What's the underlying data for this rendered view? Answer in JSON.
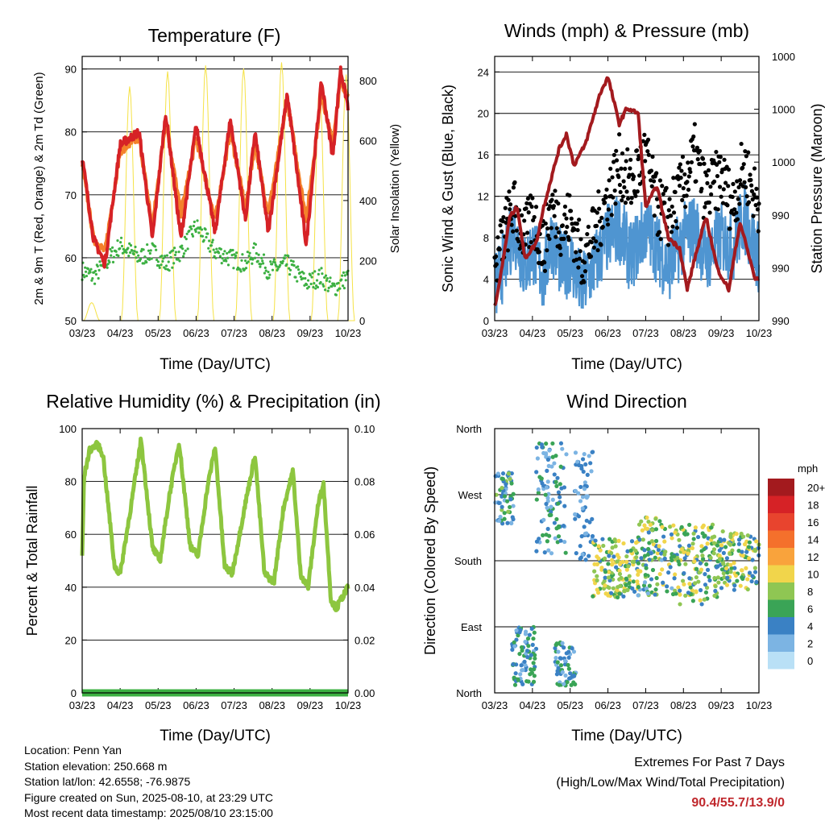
{
  "info": {
    "location": "Location: Penn Yan",
    "elevation": "Station elevation: 250.668 m",
    "latlon": "Station lat/lon: 42.6558; -76.9875",
    "created": "Figure created on Sun, 2025-08-10, at 23:29 UTC",
    "recent": "Most recent data timestamp: 2025/08/10 23:15:00"
  },
  "extremes": {
    "title": "Extremes For Past 7 Days",
    "subtitle": "(High/Low/Max Wind/Total Precipitation)",
    "values": "90.4/55.7/13.9/0"
  },
  "colors": {
    "temp2m": "#d62226",
    "temp9m": "#f4812a",
    "dewpoint": "#3cb042",
    "solar": "#f5e246",
    "wind": "#4f95d1",
    "gust": "#000000",
    "pressure": "#a31a1e",
    "humidity": "#8dc63f",
    "precip": "#3cb042"
  },
  "chart_data": [
    {
      "type": "line",
      "title": "Temperature (F)",
      "xlabel": "Time (Day/UTC)",
      "ylabel": "2m & 9m T (Red, Orange) & 2m Td (Green)",
      "y2label": "Solar Insolation (Yellow)",
      "xticks": [
        "03/23",
        "04/23",
        "05/23",
        "06/23",
        "07/23",
        "08/23",
        "09/23",
        "10/23"
      ],
      "ylim": [
        50,
        92
      ],
      "yticks": [
        "50",
        "60",
        "70",
        "80",
        "90"
      ],
      "y2lim": [
        0,
        880
      ],
      "y2ticks": [
        "0",
        "200",
        "400",
        "600",
        "800"
      ],
      "series": [
        {
          "name": "2m T",
          "color": "#d62226",
          "x": [
            0,
            0.3,
            0.6,
            1.0,
            1.5,
            1.85,
            2.2,
            2.6,
            3.0,
            3.5,
            3.9,
            4.3,
            4.55,
            4.9,
            5.4,
            5.9,
            6.3,
            6.6,
            6.8,
            7.0
          ],
          "y": [
            76,
            63,
            59,
            78,
            80,
            63,
            83,
            63,
            81,
            64,
            82,
            66,
            80,
            64,
            86,
            62,
            88,
            76,
            90,
            84
          ]
        },
        {
          "name": "9m T",
          "color": "#f4812a",
          "x": [
            0,
            0.3,
            0.6,
            1.0,
            1.5,
            1.85,
            2.2,
            2.6,
            3.0,
            3.5,
            3.9,
            4.3,
            4.55,
            4.9,
            5.4,
            5.9,
            6.3,
            6.6,
            6.8,
            7.0
          ],
          "y": [
            75,
            63,
            61,
            77,
            79,
            65,
            82,
            67,
            79,
            66,
            80,
            68,
            78,
            67,
            85,
            66,
            86,
            78,
            88,
            86
          ]
        },
        {
          "name": "2m Td",
          "color": "#3cb042",
          "x": [
            0,
            0.3,
            0.6,
            1.0,
            1.5,
            1.85,
            2.2,
            2.6,
            3.0,
            3.5,
            3.9,
            4.3,
            4.55,
            4.9,
            5.4,
            5.9,
            6.3,
            6.6,
            6.8,
            7.0
          ],
          "y": [
            58,
            57,
            59,
            62,
            60,
            61,
            59,
            61,
            65,
            61,
            60,
            59,
            61,
            58,
            59,
            56,
            57,
            55,
            56,
            57
          ]
        },
        {
          "name": "Solar",
          "color": "#f5e246",
          "axis": "y2",
          "peaks_x": [
            0.25,
            1.25,
            2.25,
            3.25,
            4.25,
            5.25,
            6.25,
            6.95
          ],
          "peaks_y": [
            60,
            780,
            830,
            850,
            840,
            860,
            780,
            820
          ]
        }
      ]
    },
    {
      "type": "line",
      "title": "Winds (mph) & Pressure (mb)",
      "xlabel": "Time (Day/UTC)",
      "ylabel": "Sonic Wind & Gust (Blue, Black)",
      "y2label": "Station Pressure (Maroon)",
      "xticks": [
        "03/23",
        "04/23",
        "05/23",
        "06/23",
        "07/23",
        "08/23",
        "09/23",
        "10/23"
      ],
      "ylim": [
        0,
        25.5
      ],
      "yticks": [
        "0",
        "4",
        "8",
        "12",
        "16",
        "20",
        "24"
      ],
      "y2ticks": [
        "990",
        "990",
        "990",
        "1000",
        "1000",
        "1000"
      ],
      "series": [
        {
          "name": "Wind",
          "color": "#4f95d1",
          "x": [
            0,
            0.3,
            0.5,
            0.8,
            1.0,
            1.3,
            1.5,
            1.8,
            2.0,
            2.3,
            2.6,
            3.0,
            3.3,
            3.6,
            4.0,
            4.3,
            4.6,
            5.0,
            5.3,
            5.6,
            6.0,
            6.3,
            6.6,
            7.0
          ],
          "y": [
            3,
            6,
            9,
            5,
            7,
            4,
            8,
            5,
            6,
            3,
            5,
            8,
            9,
            6,
            9,
            7,
            5,
            8,
            9,
            6,
            8,
            7,
            10,
            6
          ]
        },
        {
          "name": "Gust",
          "color": "#000000",
          "x": [
            0,
            0.3,
            0.5,
            0.8,
            1.0,
            1.3,
            1.5,
            1.8,
            2.0,
            2.3,
            2.6,
            3.0,
            3.3,
            3.6,
            4.0,
            4.3,
            4.6,
            5.0,
            5.3,
            5.6,
            6.0,
            6.3,
            6.6,
            7.0
          ],
          "y": [
            5,
            9,
            11,
            8,
            10,
            7,
            11,
            9,
            10,
            6,
            8,
            12,
            15,
            13,
            16,
            11,
            10,
            13,
            16,
            12,
            14,
            11,
            15,
            11
          ]
        },
        {
          "name": "Pressure",
          "color": "#a31a1e",
          "x": [
            0,
            0.1,
            0.4,
            0.6,
            0.8,
            1.1,
            1.3,
            1.7,
            1.9,
            2.1,
            2.4,
            2.8,
            3.0,
            3.3,
            3.5,
            3.8,
            4.0,
            4.3,
            4.6,
            4.9,
            5.1,
            5.3,
            5.6,
            5.9,
            6.2,
            6.5,
            6.9,
            7.0
          ],
          "y": [
            1.5,
            3,
            10,
            11,
            6,
            7.5,
            11,
            16.5,
            18,
            15,
            17,
            22,
            23.5,
            19,
            20.5,
            20,
            11,
            13,
            8,
            7,
            3,
            6,
            10,
            5,
            3,
            9.5,
            4,
            4
          ]
        }
      ]
    },
    {
      "type": "line",
      "title": "Relative Humidity (%) & Precipitation (in)",
      "xlabel": "Time (Day/UTC)",
      "ylabel": "Percent & Total Rainfall",
      "xticks": [
        "03/23",
        "04/23",
        "05/23",
        "06/23",
        "07/23",
        "08/23",
        "09/23",
        "10/23"
      ],
      "ylim": [
        0,
        100
      ],
      "yticks": [
        "0",
        "20",
        "40",
        "60",
        "80",
        "100"
      ],
      "y2lim": [
        0,
        0.1
      ],
      "y2ticks": [
        "0.00",
        "0.02",
        "0.04",
        "0.06",
        "0.08",
        "0.10"
      ],
      "series": [
        {
          "name": "RH",
          "color": "#8dc63f",
          "x": [
            0,
            0.05,
            0.2,
            0.4,
            0.55,
            0.85,
            1.0,
            1.3,
            1.55,
            1.85,
            2.05,
            2.3,
            2.55,
            2.85,
            3.05,
            3.3,
            3.5,
            3.75,
            3.95,
            4.3,
            4.55,
            4.8,
            5.05,
            5.3,
            5.55,
            5.75,
            5.95,
            6.2,
            6.35,
            6.55,
            6.7,
            6.8,
            7.0
          ],
          "y": [
            52,
            82,
            92,
            94,
            90,
            48,
            45,
            72,
            96,
            55,
            50,
            75,
            95,
            55,
            52,
            78,
            93,
            48,
            45,
            72,
            90,
            45,
            42,
            70,
            84,
            45,
            40,
            70,
            80,
            35,
            32,
            35,
            40
          ]
        },
        {
          "name": "Precipitation",
          "color": "#3cb042",
          "axis": "y2",
          "x": [
            0,
            7
          ],
          "y": [
            0,
            0
          ]
        }
      ]
    },
    {
      "type": "scatter",
      "title": "Wind Direction",
      "xlabel": "Time (Day/UTC)",
      "ylabel": "Direction (Colored By Speed)",
      "xticks": [
        "03/23",
        "04/23",
        "05/23",
        "06/23",
        "07/23",
        "08/23",
        "09/23",
        "10/23"
      ],
      "yticks": [
        "North",
        "East",
        "South",
        "West",
        "North"
      ],
      "ylim": [
        0,
        360
      ],
      "colorbar": {
        "unit": "mph",
        "labels": [
          "20+",
          "18",
          "16",
          "14",
          "12",
          "10",
          "8",
          "6",
          "4",
          "2",
          "0"
        ],
        "colors": [
          "#a31a1e",
          "#d62226",
          "#e8442e",
          "#f4702c",
          "#f9a33c",
          "#f1d54b",
          "#8fc653",
          "#3aa456",
          "#3a81c4",
          "#7cb4e3",
          "#b9e0f6"
        ]
      },
      "clusters": [
        {
          "x0": 0.0,
          "x1": 0.5,
          "d0": 230,
          "d1": 300,
          "s0": 2,
          "s1": 9
        },
        {
          "x0": 0.45,
          "x1": 1.1,
          "d0": 10,
          "d1": 90,
          "s0": 3,
          "s1": 8
        },
        {
          "x0": 1.1,
          "x1": 1.9,
          "d0": 190,
          "d1": 340,
          "s0": 2,
          "s1": 8
        },
        {
          "x0": 1.6,
          "x1": 2.15,
          "d0": 10,
          "d1": 70,
          "s0": 3,
          "s1": 8
        },
        {
          "x0": 2.1,
          "x1": 2.6,
          "d0": 180,
          "d1": 330,
          "s0": 2,
          "s1": 6
        },
        {
          "x0": 2.6,
          "x1": 3.8,
          "d0": 130,
          "d1": 210,
          "s0": 5,
          "s1": 12
        },
        {
          "x0": 3.8,
          "x1": 4.7,
          "d0": 130,
          "d1": 240,
          "s0": 3,
          "s1": 12
        },
        {
          "x0": 4.7,
          "x1": 5.9,
          "d0": 120,
          "d1": 230,
          "s0": 4,
          "s1": 12
        },
        {
          "x0": 5.9,
          "x1": 7.0,
          "d0": 140,
          "d1": 220,
          "s0": 4,
          "s1": 12
        }
      ]
    }
  ]
}
